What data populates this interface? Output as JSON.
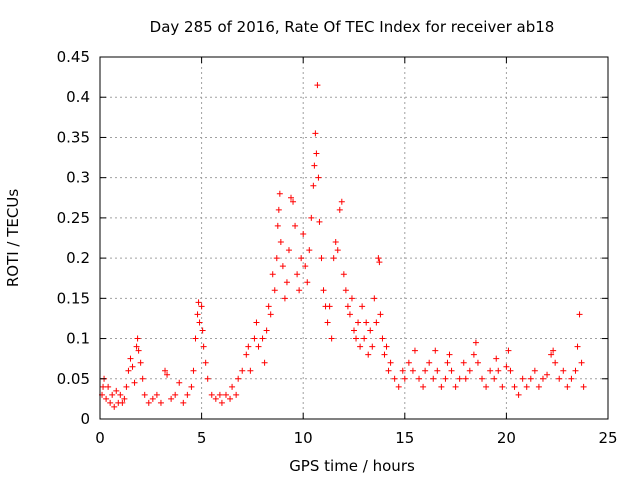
{
  "chart_data": {
    "type": "scatter",
    "title": "Day 285 of 2016, Rate Of TEC Index for receiver ab18",
    "xlabel": "GPS time / hours",
    "ylabel": "ROTI / TECUs",
    "xlim": [
      0,
      25
    ],
    "ylim": [
      0,
      0.45
    ],
    "xticks": [
      0,
      5,
      10,
      15,
      20,
      25
    ],
    "yticks": [
      0,
      0.05,
      0.1,
      0.15,
      0.2,
      0.25,
      0.3,
      0.35,
      0.4,
      0.45
    ],
    "xtick_labels": [
      "0",
      "5",
      "10",
      "15",
      "20",
      "25"
    ],
    "ytick_labels": [
      "0",
      "0.05",
      "0.1",
      "0.15",
      "0.2",
      "0.25",
      "0.3",
      "0.35",
      "0.4",
      "0.45"
    ],
    "grid": true,
    "marker": "+",
    "color": "#ff0000",
    "series": [
      {
        "name": "ROTI",
        "points": [
          [
            0.1,
            0.03
          ],
          [
            0.15,
            0.04
          ],
          [
            0.2,
            0.05
          ],
          [
            0.3,
            0.025
          ],
          [
            0.4,
            0.04
          ],
          [
            0.5,
            0.02
          ],
          [
            0.6,
            0.03
          ],
          [
            0.7,
            0.015
          ],
          [
            0.8,
            0.035
          ],
          [
            0.9,
            0.02
          ],
          [
            1.0,
            0.03
          ],
          [
            1.1,
            0.02
          ],
          [
            1.2,
            0.025
          ],
          [
            1.3,
            0.04
          ],
          [
            1.4,
            0.06
          ],
          [
            1.5,
            0.075
          ],
          [
            1.6,
            0.065
          ],
          [
            1.7,
            0.045
          ],
          [
            1.8,
            0.09
          ],
          [
            1.85,
            0.1
          ],
          [
            1.9,
            0.085
          ],
          [
            2.0,
            0.07
          ],
          [
            2.1,
            0.05
          ],
          [
            2.2,
            0.03
          ],
          [
            2.4,
            0.02
          ],
          [
            2.6,
            0.025
          ],
          [
            2.8,
            0.03
          ],
          [
            3.0,
            0.02
          ],
          [
            3.2,
            0.06
          ],
          [
            3.3,
            0.055
          ],
          [
            3.5,
            0.025
          ],
          [
            3.7,
            0.03
          ],
          [
            3.9,
            0.045
          ],
          [
            4.1,
            0.02
          ],
          [
            4.3,
            0.03
          ],
          [
            4.5,
            0.04
          ],
          [
            4.6,
            0.06
          ],
          [
            4.7,
            0.1
          ],
          [
            4.8,
            0.13
          ],
          [
            4.85,
            0.145
          ],
          [
            4.9,
            0.12
          ],
          [
            5.0,
            0.14
          ],
          [
            5.05,
            0.11
          ],
          [
            5.1,
            0.09
          ],
          [
            5.2,
            0.07
          ],
          [
            5.3,
            0.05
          ],
          [
            5.5,
            0.03
          ],
          [
            5.7,
            0.025
          ],
          [
            5.9,
            0.03
          ],
          [
            6.0,
            0.02
          ],
          [
            6.2,
            0.03
          ],
          [
            6.4,
            0.025
          ],
          [
            6.5,
            0.04
          ],
          [
            6.7,
            0.03
          ],
          [
            6.8,
            0.05
          ],
          [
            7.0,
            0.06
          ],
          [
            7.2,
            0.08
          ],
          [
            7.3,
            0.09
          ],
          [
            7.4,
            0.06
          ],
          [
            7.6,
            0.1
          ],
          [
            7.7,
            0.12
          ],
          [
            7.8,
            0.09
          ],
          [
            8.0,
            0.1
          ],
          [
            8.1,
            0.07
          ],
          [
            8.2,
            0.11
          ],
          [
            8.3,
            0.14
          ],
          [
            8.4,
            0.13
          ],
          [
            8.5,
            0.18
          ],
          [
            8.6,
            0.16
          ],
          [
            8.7,
            0.2
          ],
          [
            8.75,
            0.24
          ],
          [
            8.8,
            0.26
          ],
          [
            8.85,
            0.28
          ],
          [
            8.9,
            0.22
          ],
          [
            9.0,
            0.19
          ],
          [
            9.1,
            0.15
          ],
          [
            9.2,
            0.17
          ],
          [
            9.3,
            0.21
          ],
          [
            9.4,
            0.275
          ],
          [
            9.5,
            0.27
          ],
          [
            9.6,
            0.24
          ],
          [
            9.7,
            0.18
          ],
          [
            9.8,
            0.16
          ],
          [
            9.9,
            0.2
          ],
          [
            10.0,
            0.23
          ],
          [
            10.1,
            0.19
          ],
          [
            10.2,
            0.17
          ],
          [
            10.3,
            0.21
          ],
          [
            10.4,
            0.25
          ],
          [
            10.5,
            0.29
          ],
          [
            10.55,
            0.315
          ],
          [
            10.6,
            0.355
          ],
          [
            10.65,
            0.33
          ],
          [
            10.7,
            0.415
          ],
          [
            10.75,
            0.3
          ],
          [
            10.8,
            0.245
          ],
          [
            10.9,
            0.2
          ],
          [
            11.0,
            0.16
          ],
          [
            11.1,
            0.14
          ],
          [
            11.2,
            0.12
          ],
          [
            11.3,
            0.14
          ],
          [
            11.4,
            0.1
          ],
          [
            11.5,
            0.2
          ],
          [
            11.6,
            0.22
          ],
          [
            11.7,
            0.21
          ],
          [
            11.8,
            0.26
          ],
          [
            11.9,
            0.27
          ],
          [
            12.0,
            0.18
          ],
          [
            12.1,
            0.16
          ],
          [
            12.2,
            0.14
          ],
          [
            12.3,
            0.13
          ],
          [
            12.4,
            0.15
          ],
          [
            12.5,
            0.11
          ],
          [
            12.6,
            0.1
          ],
          [
            12.7,
            0.12
          ],
          [
            12.8,
            0.09
          ],
          [
            12.9,
            0.14
          ],
          [
            13.0,
            0.1
          ],
          [
            13.1,
            0.12
          ],
          [
            13.2,
            0.08
          ],
          [
            13.3,
            0.11
          ],
          [
            13.4,
            0.09
          ],
          [
            13.5,
            0.15
          ],
          [
            13.6,
            0.12
          ],
          [
            13.7,
            0.2
          ],
          [
            13.75,
            0.195
          ],
          [
            13.8,
            0.13
          ],
          [
            13.9,
            0.1
          ],
          [
            14.0,
            0.08
          ],
          [
            14.1,
            0.09
          ],
          [
            14.2,
            0.06
          ],
          [
            14.3,
            0.07
          ],
          [
            14.5,
            0.05
          ],
          [
            14.7,
            0.04
          ],
          [
            14.9,
            0.06
          ],
          [
            15.0,
            0.05
          ],
          [
            15.2,
            0.07
          ],
          [
            15.4,
            0.06
          ],
          [
            15.5,
            0.085
          ],
          [
            15.7,
            0.05
          ],
          [
            15.9,
            0.04
          ],
          [
            16.0,
            0.06
          ],
          [
            16.2,
            0.07
          ],
          [
            16.4,
            0.05
          ],
          [
            16.5,
            0.085
          ],
          [
            16.6,
            0.06
          ],
          [
            16.8,
            0.04
          ],
          [
            17.0,
            0.05
          ],
          [
            17.1,
            0.07
          ],
          [
            17.2,
            0.08
          ],
          [
            17.3,
            0.06
          ],
          [
            17.5,
            0.04
          ],
          [
            17.7,
            0.05
          ],
          [
            17.9,
            0.07
          ],
          [
            18.0,
            0.05
          ],
          [
            18.2,
            0.06
          ],
          [
            18.4,
            0.08
          ],
          [
            18.5,
            0.095
          ],
          [
            18.6,
            0.07
          ],
          [
            18.8,
            0.05
          ],
          [
            19.0,
            0.04
          ],
          [
            19.2,
            0.06
          ],
          [
            19.4,
            0.05
          ],
          [
            19.5,
            0.075
          ],
          [
            19.6,
            0.06
          ],
          [
            19.8,
            0.04
          ],
          [
            20.0,
            0.065
          ],
          [
            20.1,
            0.085
          ],
          [
            20.2,
            0.06
          ],
          [
            20.4,
            0.04
          ],
          [
            20.6,
            0.03
          ],
          [
            20.8,
            0.05
          ],
          [
            21.0,
            0.04
          ],
          [
            21.2,
            0.05
          ],
          [
            21.4,
            0.06
          ],
          [
            21.6,
            0.04
          ],
          [
            21.8,
            0.05
          ],
          [
            22.0,
            0.055
          ],
          [
            22.2,
            0.08
          ],
          [
            22.3,
            0.085
          ],
          [
            22.4,
            0.07
          ],
          [
            22.6,
            0.05
          ],
          [
            22.8,
            0.06
          ],
          [
            23.0,
            0.04
          ],
          [
            23.2,
            0.05
          ],
          [
            23.4,
            0.06
          ],
          [
            23.5,
            0.09
          ],
          [
            23.6,
            0.13
          ],
          [
            23.7,
            0.07
          ],
          [
            23.8,
            0.04
          ]
        ]
      }
    ]
  }
}
